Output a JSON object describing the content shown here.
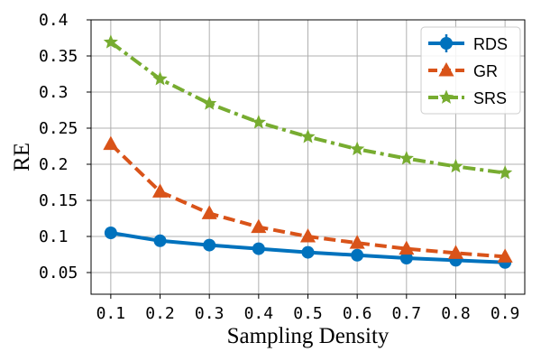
{
  "chart_data": {
    "type": "line",
    "title": "",
    "xlabel": "Sampling Density",
    "ylabel": "RE",
    "xlim": [
      0.06,
      0.94
    ],
    "ylim": [
      0.02,
      0.4
    ],
    "xticks": [
      0.1,
      0.2,
      0.3,
      0.4,
      0.5,
      0.6,
      0.7,
      0.8,
      0.9
    ],
    "xtick_labels": [
      "0.1",
      "0.2",
      "0.3",
      "0.4",
      "0.5",
      "0.6",
      "0.7",
      "0.8",
      "0.9"
    ],
    "yticks": [
      0.05,
      0.1,
      0.15,
      0.2,
      0.25,
      0.3,
      0.35,
      0.4
    ],
    "ytick_labels": [
      "0.05",
      "0.1 ",
      "0.15",
      "0.2 ",
      "0.25",
      "0.3 ",
      "0.35",
      "0.4 "
    ],
    "grid": true,
    "legend_position": "top-right",
    "x": [
      0.1,
      0.2,
      0.3,
      0.4,
      0.5,
      0.6,
      0.7,
      0.8,
      0.9
    ],
    "series": [
      {
        "name": "RDS",
        "color": "#0072bd",
        "linestyle": "solid",
        "marker": "circle",
        "values": [
          0.105,
          0.094,
          0.088,
          0.083,
          0.078,
          0.074,
          0.07,
          0.067,
          0.064
        ]
      },
      {
        "name": "GR",
        "color": "#d95319",
        "linestyle": "dashed",
        "marker": "triangle",
        "values": [
          0.228,
          0.162,
          0.132,
          0.113,
          0.1,
          0.091,
          0.083,
          0.077,
          0.072
        ]
      },
      {
        "name": "SRS",
        "color": "#77ac30",
        "linestyle": "dashdot",
        "marker": "star",
        "values": [
          0.369,
          0.318,
          0.284,
          0.258,
          0.238,
          0.221,
          0.208,
          0.197,
          0.188
        ]
      }
    ]
  }
}
